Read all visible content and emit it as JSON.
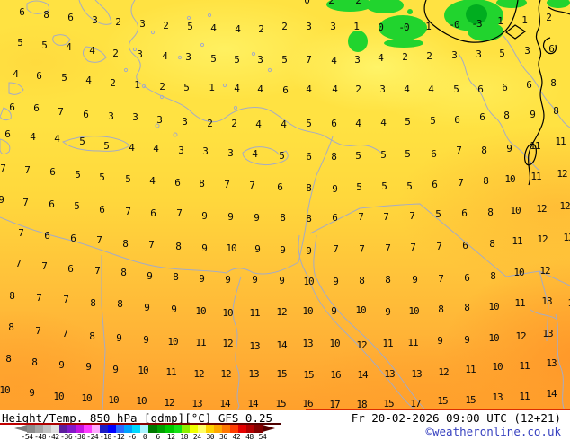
{
  "footer": {
    "title": "Height/Temp. 850 hPa [gdmp][°C] GFS 0.25",
    "datetime": "Fr 20-02-2026 09:00 UTC (12+21)",
    "credit": "©weatheronline.co.uk"
  },
  "colorbar": {
    "tick_labels": [
      "-54",
      "-48",
      "-42",
      "-36",
      "-30",
      "-24",
      "-18",
      "-12",
      "-6",
      "0",
      "6",
      "12",
      "18",
      "24",
      "30",
      "36",
      "42",
      "48",
      "54"
    ],
    "colors": [
      "#8c8c8c",
      "#a6a6a6",
      "#c2c2c2",
      "#e0e0e0",
      "#5c1e9e",
      "#8318c9",
      "#c414e0",
      "#ff3cff",
      "#ffa8ff",
      "#1c1cc8",
      "#0000ff",
      "#2a6aff",
      "#00a2ff",
      "#00d8ff",
      "#a8f4ff",
      "#007a00",
      "#00a000",
      "#00c800",
      "#16e216",
      "#8cf000",
      "#f0ff00",
      "#ffff64",
      "#ffd200",
      "#ffa800",
      "#ff7800",
      "#ff3c00",
      "#e60000",
      "#b40000",
      "#820000"
    ],
    "left_arrow_color": "#7d7d7d",
    "right_arrow_color": "#560000"
  },
  "map": {
    "palette": {
      "y1": "#ffe242",
      "y2": "#ffd83c",
      "pale": "#fff468",
      "o1": "#ffc43a",
      "o2": "#ffb136",
      "o3": "#ffa02c",
      "green": "#21d42e",
      "dgreen": "#00ad1f",
      "coast": "#a4abc6",
      "contour": "#000000",
      "redline": "#dd2e00",
      "credit": "#3842c0"
    },
    "values": [
      [
        -3,
        13,
        "2"
      ],
      [
        24,
        14,
        "6"
      ],
      [
        51,
        17,
        "8"
      ],
      [
        78,
        20,
        "6"
      ],
      [
        105,
        23,
        "3"
      ],
      [
        131,
        25,
        "2"
      ],
      [
        158,
        27,
        "3"
      ],
      [
        184,
        29,
        "2"
      ],
      [
        211,
        30,
        "5"
      ],
      [
        237,
        32,
        "4"
      ],
      [
        264,
        33,
        "4"
      ],
      [
        290,
        33,
        "2"
      ],
      [
        316,
        30,
        "2"
      ],
      [
        343,
        30,
        "3"
      ],
      [
        370,
        30,
        "3"
      ],
      [
        396,
        30,
        "1"
      ],
      [
        423,
        31,
        "0"
      ],
      [
        449,
        31,
        "-0"
      ],
      [
        476,
        30,
        "1"
      ],
      [
        505,
        28,
        "-0"
      ],
      [
        530,
        27,
        "-3"
      ],
      [
        556,
        24,
        "1"
      ],
      [
        583,
        23,
        "1"
      ],
      [
        610,
        20,
        "2"
      ],
      [
        341,
        1,
        "0"
      ],
      [
        368,
        1,
        "2"
      ],
      [
        398,
        1,
        "2"
      ],
      [
        22,
        48,
        "5"
      ],
      [
        49,
        51,
        "5"
      ],
      [
        76,
        53,
        "4"
      ],
      [
        102,
        57,
        "4"
      ],
      [
        128,
        60,
        "2"
      ],
      [
        155,
        61,
        "3"
      ],
      [
        183,
        63,
        "4"
      ],
      [
        209,
        64,
        "3"
      ],
      [
        237,
        66,
        "5"
      ],
      [
        263,
        67,
        "5"
      ],
      [
        289,
        67,
        "3"
      ],
      [
        316,
        67,
        "5"
      ],
      [
        343,
        67,
        "7"
      ],
      [
        371,
        68,
        "4"
      ],
      [
        397,
        67,
        "3"
      ],
      [
        423,
        65,
        "4"
      ],
      [
        450,
        64,
        "2"
      ],
      [
        477,
        63,
        "2"
      ],
      [
        505,
        62,
        "3"
      ],
      [
        532,
        61,
        "3"
      ],
      [
        558,
        60,
        "5"
      ],
      [
        586,
        57,
        "3"
      ],
      [
        613,
        55,
        "6"
      ],
      [
        17,
        83,
        "4"
      ],
      [
        43,
        85,
        "6"
      ],
      [
        71,
        87,
        "5"
      ],
      [
        98,
        90,
        "4"
      ],
      [
        125,
        93,
        "2"
      ],
      [
        152,
        95,
        "1"
      ],
      [
        180,
        97,
        "2"
      ],
      [
        207,
        98,
        "5"
      ],
      [
        235,
        98,
        "1"
      ],
      [
        263,
        99,
        "4"
      ],
      [
        289,
        100,
        "4"
      ],
      [
        317,
        101,
        "6"
      ],
      [
        343,
        100,
        "4"
      ],
      [
        372,
        100,
        "4"
      ],
      [
        398,
        100,
        "2"
      ],
      [
        425,
        100,
        "3"
      ],
      [
        452,
        100,
        "4"
      ],
      [
        479,
        100,
        "4"
      ],
      [
        507,
        100,
        "5"
      ],
      [
        534,
        100,
        "6"
      ],
      [
        561,
        98,
        "6"
      ],
      [
        588,
        95,
        "6"
      ],
      [
        615,
        93,
        "8"
      ],
      [
        13,
        120,
        "6"
      ],
      [
        40,
        121,
        "6"
      ],
      [
        67,
        125,
        "7"
      ],
      [
        95,
        128,
        "6"
      ],
      [
        123,
        130,
        "3"
      ],
      [
        150,
        131,
        "3"
      ],
      [
        177,
        134,
        "3"
      ],
      [
        205,
        136,
        "3"
      ],
      [
        233,
        138,
        "2"
      ],
      [
        260,
        138,
        "2"
      ],
      [
        287,
        139,
        "4"
      ],
      [
        315,
        139,
        "4"
      ],
      [
        343,
        138,
        "5"
      ],
      [
        371,
        138,
        "6"
      ],
      [
        398,
        138,
        "4"
      ],
      [
        426,
        137,
        "4"
      ],
      [
        453,
        136,
        "5"
      ],
      [
        481,
        135,
        "5"
      ],
      [
        508,
        134,
        "6"
      ],
      [
        536,
        131,
        "6"
      ],
      [
        563,
        129,
        "8"
      ],
      [
        592,
        128,
        "9"
      ],
      [
        618,
        124,
        "8"
      ],
      [
        8,
        150,
        "6"
      ],
      [
        36,
        153,
        "4"
      ],
      [
        63,
        155,
        "4"
      ],
      [
        91,
        158,
        "5"
      ],
      [
        118,
        163,
        "5"
      ],
      [
        146,
        165,
        "4"
      ],
      [
        173,
        166,
        "4"
      ],
      [
        201,
        168,
        "3"
      ],
      [
        228,
        169,
        "3"
      ],
      [
        256,
        171,
        "3"
      ],
      [
        283,
        172,
        "4"
      ],
      [
        313,
        174,
        "5"
      ],
      [
        343,
        175,
        "6"
      ],
      [
        371,
        175,
        "8"
      ],
      [
        398,
        174,
        "5"
      ],
      [
        426,
        173,
        "5"
      ],
      [
        453,
        172,
        "5"
      ],
      [
        482,
        172,
        "6"
      ],
      [
        510,
        168,
        "7"
      ],
      [
        538,
        168,
        "8"
      ],
      [
        566,
        166,
        "9"
      ],
      [
        595,
        163,
        "11"
      ],
      [
        623,
        158,
        "11"
      ],
      [
        3,
        188,
        "7"
      ],
      [
        30,
        190,
        "7"
      ],
      [
        58,
        192,
        "6"
      ],
      [
        86,
        195,
        "5"
      ],
      [
        113,
        198,
        "5"
      ],
      [
        142,
        200,
        "5"
      ],
      [
        169,
        202,
        "4"
      ],
      [
        197,
        204,
        "6"
      ],
      [
        224,
        205,
        "8"
      ],
      [
        252,
        206,
        "7"
      ],
      [
        280,
        207,
        "7"
      ],
      [
        311,
        209,
        "6"
      ],
      [
        343,
        210,
        "8"
      ],
      [
        372,
        211,
        "9"
      ],
      [
        399,
        209,
        "5"
      ],
      [
        427,
        208,
        "5"
      ],
      [
        455,
        208,
        "5"
      ],
      [
        483,
        206,
        "6"
      ],
      [
        512,
        204,
        "7"
      ],
      [
        540,
        202,
        "8"
      ],
      [
        567,
        200,
        "10"
      ],
      [
        596,
        197,
        "11"
      ],
      [
        625,
        194,
        "12"
      ],
      [
        1,
        223,
        "9"
      ],
      [
        28,
        226,
        "7"
      ],
      [
        57,
        228,
        "6"
      ],
      [
        85,
        230,
        "5"
      ],
      [
        113,
        234,
        "6"
      ],
      [
        142,
        236,
        "7"
      ],
      [
        170,
        238,
        "6"
      ],
      [
        199,
        238,
        "7"
      ],
      [
        227,
        241,
        "9"
      ],
      [
        256,
        242,
        "9"
      ],
      [
        285,
        243,
        "9"
      ],
      [
        314,
        243,
        "8"
      ],
      [
        343,
        244,
        "8"
      ],
      [
        372,
        243,
        "6"
      ],
      [
        401,
        242,
        "7"
      ],
      [
        429,
        242,
        "7"
      ],
      [
        458,
        241,
        "7"
      ],
      [
        487,
        239,
        "5"
      ],
      [
        516,
        238,
        "6"
      ],
      [
        545,
        237,
        "8"
      ],
      [
        573,
        235,
        "10"
      ],
      [
        602,
        233,
        "12"
      ],
      [
        628,
        230,
        "12"
      ],
      [
        23,
        260,
        "7"
      ],
      [
        52,
        263,
        "6"
      ],
      [
        81,
        266,
        "6"
      ],
      [
        110,
        268,
        "7"
      ],
      [
        139,
        272,
        "8"
      ],
      [
        168,
        273,
        "7"
      ],
      [
        198,
        275,
        "8"
      ],
      [
        227,
        277,
        "9"
      ],
      [
        257,
        277,
        "10"
      ],
      [
        286,
        278,
        "9"
      ],
      [
        314,
        279,
        "9"
      ],
      [
        343,
        280,
        "9"
      ],
      [
        373,
        278,
        "7"
      ],
      [
        402,
        278,
        "7"
      ],
      [
        431,
        277,
        "7"
      ],
      [
        459,
        276,
        "7"
      ],
      [
        488,
        275,
        "7"
      ],
      [
        517,
        274,
        "6"
      ],
      [
        547,
        272,
        "8"
      ],
      [
        575,
        269,
        "11"
      ],
      [
        603,
        267,
        "12"
      ],
      [
        632,
        265,
        "13"
      ],
      [
        20,
        294,
        "7"
      ],
      [
        49,
        297,
        "7"
      ],
      [
        78,
        300,
        "6"
      ],
      [
        108,
        302,
        "7"
      ],
      [
        137,
        304,
        "8"
      ],
      [
        166,
        308,
        "9"
      ],
      [
        195,
        309,
        "8"
      ],
      [
        224,
        311,
        "9"
      ],
      [
        253,
        312,
        "9"
      ],
      [
        283,
        312,
        "9"
      ],
      [
        313,
        313,
        "9"
      ],
      [
        343,
        314,
        "10"
      ],
      [
        373,
        314,
        "9"
      ],
      [
        402,
        313,
        "8"
      ],
      [
        431,
        312,
        "8"
      ],
      [
        461,
        312,
        "9"
      ],
      [
        490,
        311,
        "7"
      ],
      [
        519,
        310,
        "6"
      ],
      [
        548,
        308,
        "8"
      ],
      [
        577,
        304,
        "10"
      ],
      [
        606,
        302,
        "12"
      ],
      [
        13,
        330,
        "8"
      ],
      [
        43,
        332,
        "7"
      ],
      [
        73,
        334,
        "7"
      ],
      [
        103,
        338,
        "8"
      ],
      [
        133,
        339,
        "8"
      ],
      [
        163,
        343,
        "9"
      ],
      [
        193,
        345,
        "9"
      ],
      [
        223,
        347,
        "10"
      ],
      [
        253,
        349,
        "10"
      ],
      [
        283,
        349,
        "11"
      ],
      [
        313,
        348,
        "12"
      ],
      [
        342,
        347,
        "10"
      ],
      [
        371,
        347,
        "9"
      ],
      [
        401,
        346,
        "10"
      ],
      [
        431,
        348,
        "9"
      ],
      [
        460,
        347,
        "10"
      ],
      [
        490,
        345,
        "8"
      ],
      [
        519,
        343,
        "8"
      ],
      [
        549,
        342,
        "10"
      ],
      [
        578,
        338,
        "11"
      ],
      [
        608,
        336,
        "13"
      ],
      [
        637,
        338,
        "13"
      ],
      [
        12,
        365,
        "8"
      ],
      [
        42,
        369,
        "7"
      ],
      [
        72,
        372,
        "7"
      ],
      [
        102,
        375,
        "8"
      ],
      [
        132,
        377,
        "9"
      ],
      [
        162,
        379,
        "9"
      ],
      [
        192,
        381,
        "10"
      ],
      [
        223,
        382,
        "11"
      ],
      [
        253,
        383,
        "12"
      ],
      [
        283,
        386,
        "13"
      ],
      [
        313,
        385,
        "14"
      ],
      [
        342,
        383,
        "13"
      ],
      [
        372,
        383,
        "10"
      ],
      [
        402,
        385,
        "12"
      ],
      [
        431,
        383,
        "11"
      ],
      [
        459,
        382,
        "11"
      ],
      [
        489,
        380,
        "9"
      ],
      [
        519,
        379,
        "9"
      ],
      [
        549,
        377,
        "10"
      ],
      [
        579,
        375,
        "12"
      ],
      [
        609,
        372,
        "13"
      ],
      [
        9,
        400,
        "8"
      ],
      [
        38,
        404,
        "8"
      ],
      [
        68,
        407,
        "9"
      ],
      [
        98,
        409,
        "9"
      ],
      [
        128,
        412,
        "9"
      ],
      [
        159,
        413,
        "10"
      ],
      [
        190,
        415,
        "11"
      ],
      [
        221,
        417,
        "12"
      ],
      [
        251,
        417,
        "12"
      ],
      [
        282,
        417,
        "13"
      ],
      [
        313,
        417,
        "15"
      ],
      [
        343,
        418,
        "15"
      ],
      [
        373,
        418,
        "16"
      ],
      [
        403,
        418,
        "14"
      ],
      [
        433,
        417,
        "13"
      ],
      [
        463,
        417,
        "13"
      ],
      [
        493,
        415,
        "12"
      ],
      [
        523,
        412,
        "11"
      ],
      [
        553,
        409,
        "10"
      ],
      [
        583,
        408,
        "11"
      ],
      [
        613,
        405,
        "13"
      ],
      [
        5,
        435,
        "10"
      ],
      [
        35,
        438,
        "9"
      ],
      [
        65,
        442,
        "10"
      ],
      [
        96,
        444,
        "10"
      ],
      [
        126,
        446,
        "10"
      ],
      [
        157,
        447,
        "10"
      ],
      [
        188,
        449,
        "12"
      ],
      [
        219,
        450,
        "13"
      ],
      [
        250,
        450,
        "14"
      ],
      [
        281,
        450,
        "14"
      ],
      [
        312,
        450,
        "15"
      ],
      [
        342,
        450,
        "16"
      ],
      [
        372,
        451,
        "17"
      ],
      [
        402,
        451,
        "18"
      ],
      [
        432,
        450,
        "15"
      ],
      [
        462,
        450,
        "17"
      ],
      [
        492,
        447,
        "15"
      ],
      [
        523,
        446,
        "15"
      ],
      [
        553,
        443,
        "13"
      ],
      [
        583,
        442,
        "11"
      ],
      [
        613,
        439,
        "14"
      ]
    ]
  }
}
